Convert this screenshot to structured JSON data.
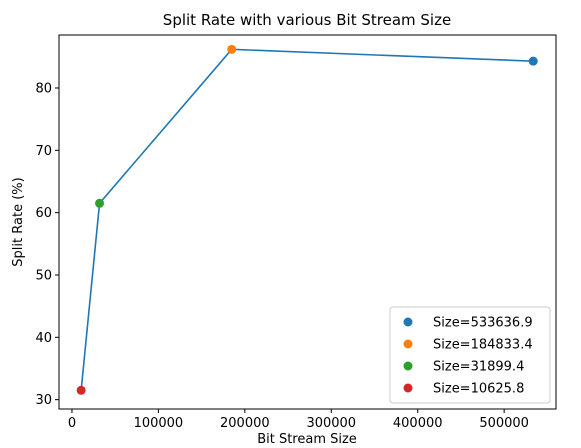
{
  "chart_data": {
    "type": "scatter",
    "title": "Split Rate with various Bit Stream Size",
    "xlabel": "Bit Stream Size",
    "ylabel": "Split Rate (%)",
    "xlim": [
      -15000,
      560000
    ],
    "ylim": [
      28.5,
      88.5
    ],
    "xticks": [
      0,
      100000,
      200000,
      300000,
      400000,
      500000
    ],
    "xtick_labels": [
      "0",
      "100000",
      "200000",
      "300000",
      "400000",
      "500000"
    ],
    "yticks": [
      30,
      40,
      50,
      60,
      70,
      80
    ],
    "ytick_labels": [
      "30",
      "40",
      "50",
      "60",
      "70",
      "80"
    ],
    "grid": false,
    "legend_position": "lower-right",
    "line": {
      "color": "#1f77b4",
      "x": [
        533636.9,
        184833.4,
        31899.4,
        10625.8
      ],
      "y": [
        84.3,
        86.2,
        61.5,
        31.5
      ]
    },
    "series": [
      {
        "name": "Size=533636.9",
        "color": "#1f77b4",
        "x": [
          533636.9
        ],
        "y": [
          84.3
        ]
      },
      {
        "name": "Size=184833.4",
        "color": "#ff7f0e",
        "x": [
          184833.4
        ],
        "y": [
          86.2
        ]
      },
      {
        "name": "Size=31899.4",
        "color": "#2ca02c",
        "x": [
          31899.4
        ],
        "y": [
          61.5
        ]
      },
      {
        "name": "Size=10625.8",
        "color": "#d62728",
        "x": [
          10625.8
        ],
        "y": [
          31.5
        ]
      }
    ]
  }
}
